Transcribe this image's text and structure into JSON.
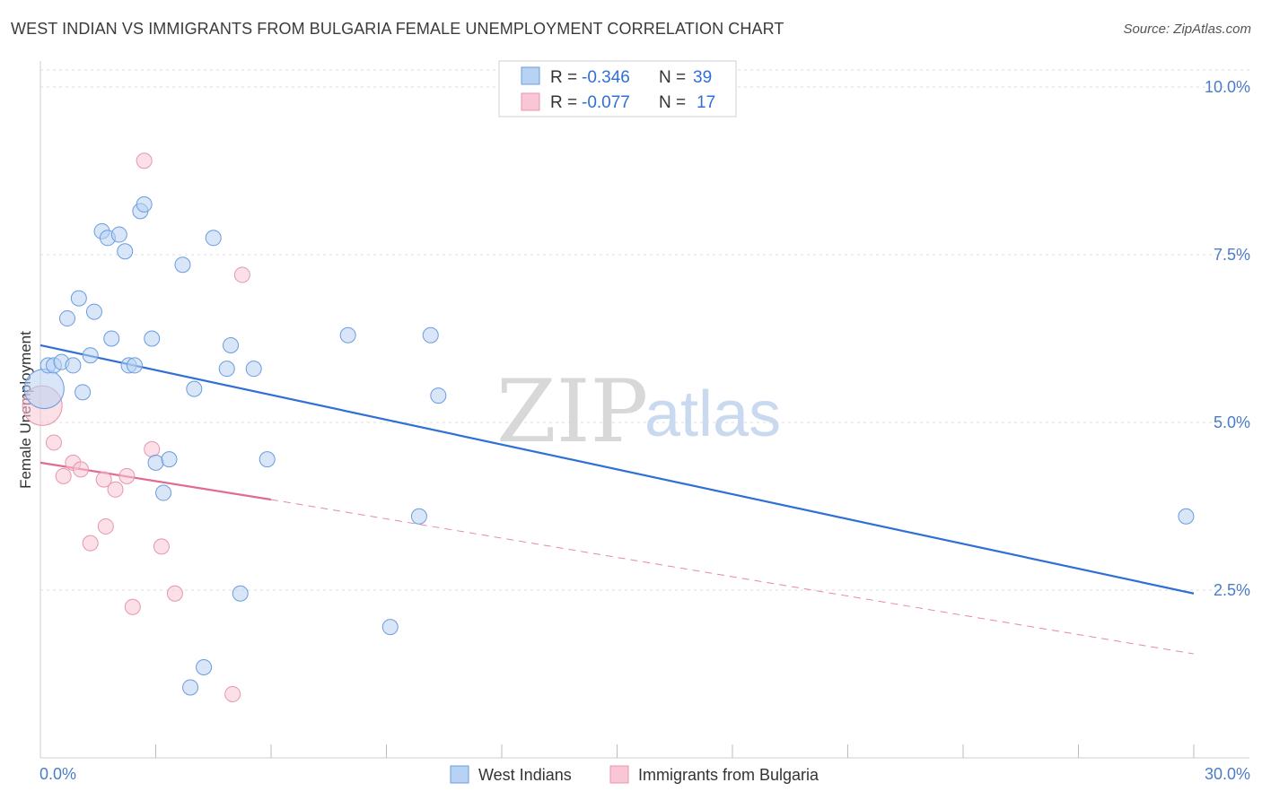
{
  "title": "WEST INDIAN VS IMMIGRANTS FROM BULGARIA FEMALE UNEMPLOYMENT CORRELATION CHART",
  "source": "Source: ZipAtlas.com",
  "watermark": {
    "zip": "ZIP",
    "atlas": "atlas"
  },
  "colors": {
    "blue_fill": "#b8d2f3",
    "blue_stroke": "#6a9ce0",
    "blue_line": "#2f6fd6",
    "pink_fill": "#f8c6d4",
    "pink_stroke": "#e895ae",
    "pink_line": "#e06b93",
    "grid": "#dddddd",
    "axis_text": "#4a7cc9"
  },
  "legend": {
    "r_label": "R =",
    "n_label": "N =",
    "rows": [
      {
        "series": "West Indians",
        "r": "-0.346",
        "n": "39"
      },
      {
        "series": "Immigrants from Bulgaria",
        "r": "-0.077",
        "n": "17"
      }
    ]
  },
  "chart_data": {
    "type": "scatter",
    "title": "WEST INDIAN VS IMMIGRANTS FROM BULGARIA FEMALE UNEMPLOYMENT CORRELATION CHART",
    "xlabel": "",
    "ylabel": "Female Unemployment",
    "xlim": [
      0,
      30
    ],
    "ylim": [
      0,
      10.5
    ],
    "x_tick_labels": [
      {
        "value": 0,
        "label": "0.0%"
      },
      {
        "value": 30,
        "label": "30.0%"
      }
    ],
    "y_tick_labels": [
      {
        "value": 2.5,
        "label": "2.5%"
      },
      {
        "value": 5.0,
        "label": "5.0%"
      },
      {
        "value": 7.5,
        "label": "7.5%"
      },
      {
        "value": 10.0,
        "label": "10.0%"
      }
    ],
    "series": [
      {
        "name": "West Indians",
        "color": "#6a9ce0",
        "trend": {
          "x": [
            0,
            30
          ],
          "y": [
            6.15,
            2.45
          ],
          "style": "solid"
        },
        "points": [
          {
            "x": 0.1,
            "y": 5.5,
            "big": true
          },
          {
            "x": 0.2,
            "y": 5.85
          },
          {
            "x": 0.35,
            "y": 5.85
          },
          {
            "x": 0.55,
            "y": 5.9
          },
          {
            "x": 0.7,
            "y": 6.55
          },
          {
            "x": 0.85,
            "y": 5.85
          },
          {
            "x": 1.0,
            "y": 6.85
          },
          {
            "x": 1.1,
            "y": 5.45
          },
          {
            "x": 1.3,
            "y": 6.0
          },
          {
            "x": 1.4,
            "y": 6.65
          },
          {
            "x": 1.6,
            "y": 7.85
          },
          {
            "x": 1.75,
            "y": 7.75
          },
          {
            "x": 1.85,
            "y": 6.25
          },
          {
            "x": 2.05,
            "y": 7.8
          },
          {
            "x": 2.2,
            "y": 7.55
          },
          {
            "x": 2.3,
            "y": 5.85
          },
          {
            "x": 2.45,
            "y": 5.85
          },
          {
            "x": 2.6,
            "y": 8.15
          },
          {
            "x": 2.7,
            "y": 8.25
          },
          {
            "x": 2.9,
            "y": 6.25
          },
          {
            "x": 3.0,
            "y": 4.4
          },
          {
            "x": 3.2,
            "y": 3.95
          },
          {
            "x": 3.35,
            "y": 4.45
          },
          {
            "x": 3.7,
            "y": 7.35
          },
          {
            "x": 3.9,
            "y": 1.05
          },
          {
            "x": 4.0,
            "y": 5.5
          },
          {
            "x": 4.25,
            "y": 1.35
          },
          {
            "x": 4.5,
            "y": 7.75
          },
          {
            "x": 4.85,
            "y": 5.8
          },
          {
            "x": 4.95,
            "y": 6.15
          },
          {
            "x": 5.2,
            "y": 2.45
          },
          {
            "x": 5.55,
            "y": 5.8
          },
          {
            "x": 5.9,
            "y": 4.45
          },
          {
            "x": 8.0,
            "y": 6.3
          },
          {
            "x": 9.1,
            "y": 1.95
          },
          {
            "x": 9.85,
            "y": 3.6
          },
          {
            "x": 10.15,
            "y": 6.3
          },
          {
            "x": 10.35,
            "y": 5.4
          },
          {
            "x": 29.8,
            "y": 3.6
          }
        ]
      },
      {
        "name": "Immigrants from Bulgaria",
        "color": "#e895ae",
        "trend_solid": {
          "x": [
            0,
            6.0
          ],
          "y": [
            4.4,
            3.85
          ]
        },
        "trend_dashed": {
          "x": [
            6.0,
            30
          ],
          "y": [
            3.85,
            1.55
          ]
        },
        "points": [
          {
            "x": 0.05,
            "y": 5.25,
            "big": true
          },
          {
            "x": 0.35,
            "y": 4.7
          },
          {
            "x": 0.6,
            "y": 4.2
          },
          {
            "x": 0.85,
            "y": 4.4
          },
          {
            "x": 1.05,
            "y": 4.3
          },
          {
            "x": 1.3,
            "y": 3.2
          },
          {
            "x": 1.65,
            "y": 4.15
          },
          {
            "x": 1.7,
            "y": 3.45
          },
          {
            "x": 1.95,
            "y": 4.0
          },
          {
            "x": 2.25,
            "y": 4.2
          },
          {
            "x": 2.4,
            "y": 2.25
          },
          {
            "x": 2.7,
            "y": 8.9
          },
          {
            "x": 2.9,
            "y": 4.6
          },
          {
            "x": 3.15,
            "y": 3.15
          },
          {
            "x": 3.5,
            "y": 2.45
          },
          {
            "x": 5.0,
            "y": 0.95
          },
          {
            "x": 5.25,
            "y": 7.2
          }
        ]
      }
    ]
  }
}
